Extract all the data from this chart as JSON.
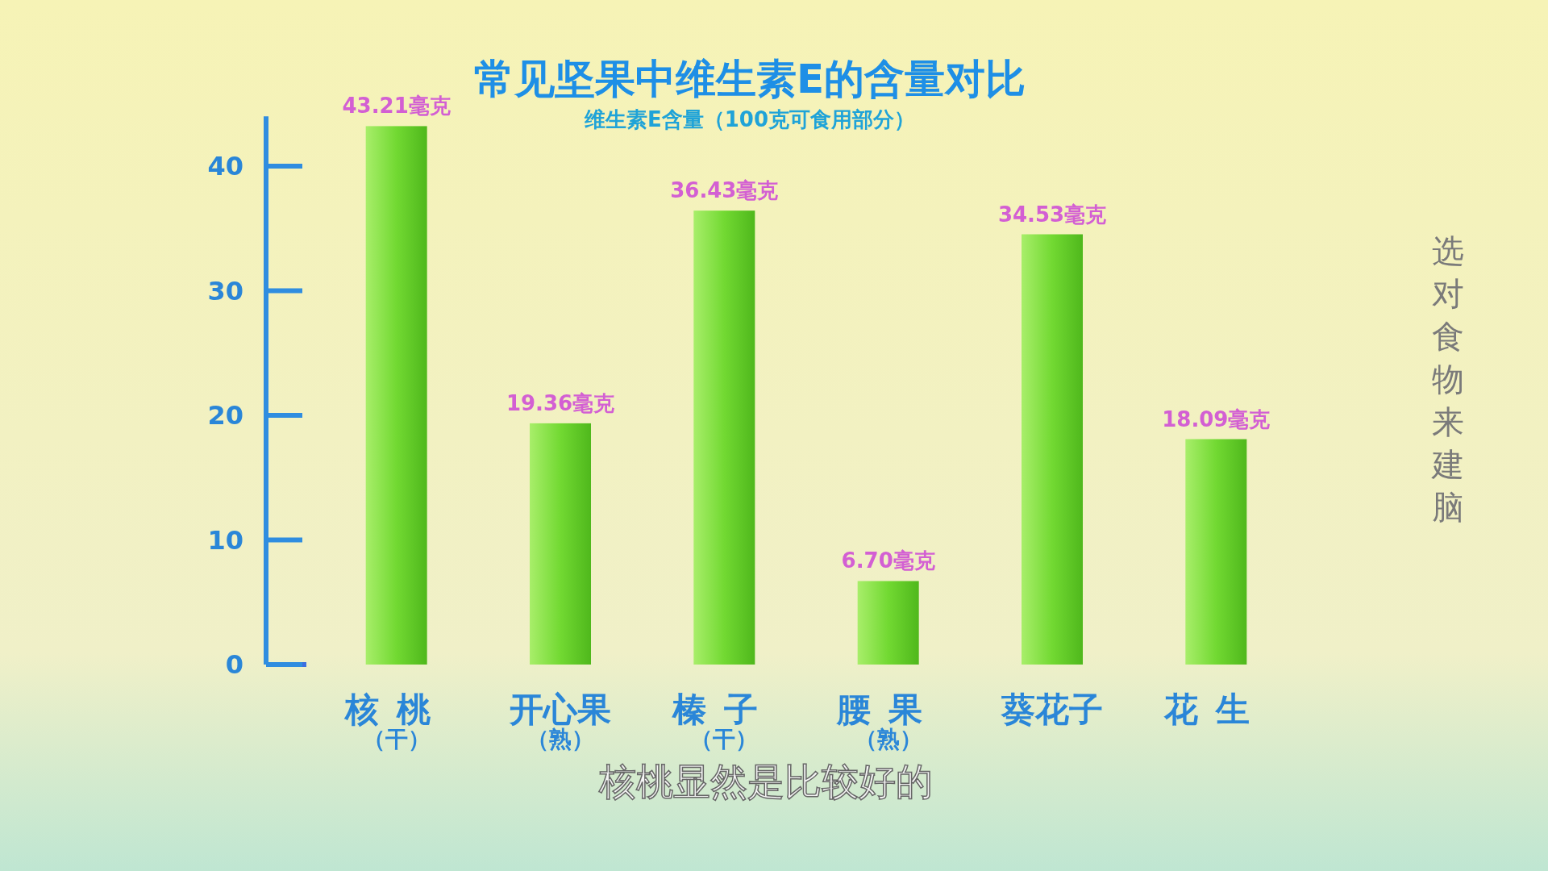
{
  "chart_data": {
    "type": "bar",
    "title": "常见坚果中维生素E的含量对比",
    "subtitle": "维生素E含量（100克可食用部分）",
    "categories": [
      "核桃（干）",
      "开心果（熟）",
      "榛子（干）",
      "腰果（熟）",
      "葵花子",
      "花生"
    ],
    "values": [
      43.21,
      19.36,
      36.43,
      6.7,
      34.53,
      18.09
    ],
    "value_labels": [
      "43.21毫克",
      "19.36毫克",
      "36.43毫克",
      "6.70毫克",
      "34.53毫克",
      "18.09毫克"
    ],
    "color": "#72d932",
    "ylim": [
      0,
      44
    ],
    "yticks": [
      0,
      10,
      20,
      30,
      40
    ],
    "grid": false,
    "annotations": [
      "核桃显然是比较好的",
      "选对食物来建脑"
    ]
  }
}
